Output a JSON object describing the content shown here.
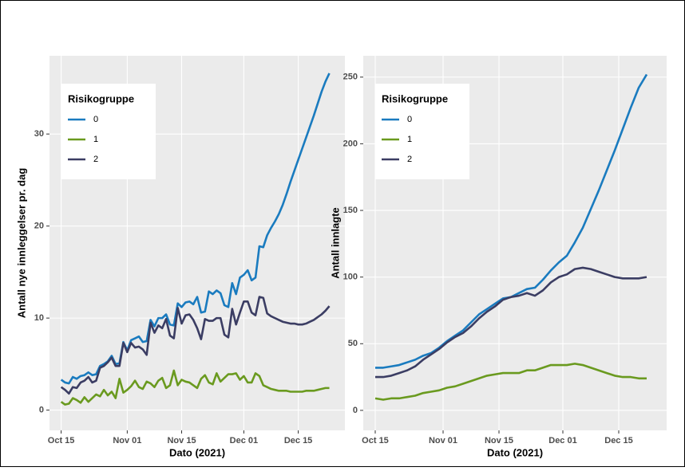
{
  "chart_data": [
    {
      "type": "line",
      "ylabel": "Antall nye innleggelser pr. dag",
      "xlabel": "Dato (2021)",
      "legend_title": "Risikogruppe",
      "legend": "top-left",
      "grid": true,
      "xlim": [
        "2021-10-12",
        "2021-12-27"
      ],
      "xticks": [
        {
          "value": "2021-10-15",
          "label": "Oct 15"
        },
        {
          "value": "2021-11-01",
          "label": "Nov 01"
        },
        {
          "value": "2021-11-15",
          "label": "Nov 15"
        },
        {
          "value": "2021-12-01",
          "label": "Dec 01"
        },
        {
          "value": "2021-12-15",
          "label": "Dec 15"
        }
      ],
      "ylim": [
        -2.2,
        38.5
      ],
      "yticks": [
        0,
        10,
        20,
        30
      ],
      "x": [
        "2021-10-15",
        "2021-10-16",
        "2021-10-17",
        "2021-10-18",
        "2021-10-19",
        "2021-10-20",
        "2021-10-21",
        "2021-10-22",
        "2021-10-23",
        "2021-10-24",
        "2021-10-25",
        "2021-10-26",
        "2021-10-27",
        "2021-10-28",
        "2021-10-29",
        "2021-10-30",
        "2021-10-31",
        "2021-11-01",
        "2021-11-02",
        "2021-11-03",
        "2021-11-04",
        "2021-11-05",
        "2021-11-06",
        "2021-11-07",
        "2021-11-08",
        "2021-11-09",
        "2021-11-10",
        "2021-11-11",
        "2021-11-12",
        "2021-11-13",
        "2021-11-14",
        "2021-11-15",
        "2021-11-16",
        "2021-11-17",
        "2021-11-18",
        "2021-11-19",
        "2021-11-20",
        "2021-11-21",
        "2021-11-22",
        "2021-11-23",
        "2021-11-24",
        "2021-11-25",
        "2021-11-26",
        "2021-11-27",
        "2021-11-28",
        "2021-11-29",
        "2021-11-30",
        "2021-12-01",
        "2021-12-02",
        "2021-12-03",
        "2021-12-04",
        "2021-12-05",
        "2021-12-06",
        "2021-12-07",
        "2021-12-08",
        "2021-12-09",
        "2021-12-10",
        "2021-12-11",
        "2021-12-12",
        "2021-12-13",
        "2021-12-14",
        "2021-12-15",
        "2021-12-16",
        "2021-12-17",
        "2021-12-18",
        "2021-12-19",
        "2021-12-20",
        "2021-12-21",
        "2021-12-22",
        "2021-12-23"
      ],
      "series": [
        {
          "name": "0",
          "color": "#1a7bbf",
          "values": [
            3.3,
            3.0,
            2.9,
            3.6,
            3.4,
            3.7,
            3.8,
            4.1,
            3.8,
            3.9,
            4.8,
            5.0,
            5.3,
            5.9,
            5.0,
            5.1,
            7.4,
            6.5,
            7.6,
            7.8,
            8.0,
            7.4,
            7.5,
            9.8,
            9.1,
            10.0,
            10.0,
            10.4,
            9.3,
            9.2,
            11.6,
            11.2,
            11.7,
            11.8,
            11.5,
            12.3,
            10.6,
            10.7,
            12.9,
            12.6,
            13.0,
            12.7,
            11.4,
            11.2,
            13.8,
            12.6,
            14.4,
            14.7,
            15.2,
            14.1,
            14.4,
            17.8,
            17.7,
            19.0,
            19.8,
            20.5,
            21.3,
            22.3,
            23.5,
            24.8,
            26.0,
            27.2,
            28.4,
            29.6,
            30.8,
            32.0,
            33.3,
            34.6,
            35.7,
            36.6
          ]
        },
        {
          "name": "1",
          "color": "#6a9a1f",
          "values": [
            0.9,
            0.6,
            0.7,
            1.3,
            1.1,
            0.8,
            1.4,
            0.9,
            1.3,
            1.7,
            1.5,
            2.2,
            1.6,
            2.0,
            1.3,
            3.4,
            1.9,
            2.2,
            2.6,
            3.2,
            2.5,
            2.3,
            3.1,
            2.9,
            2.5,
            3.2,
            3.5,
            2.4,
            2.7,
            4.3,
            2.7,
            3.3,
            3.1,
            3.0,
            2.7,
            2.4,
            3.4,
            3.8,
            3.0,
            2.8,
            4.0,
            3.1,
            3.5,
            3.9,
            3.9,
            4.0,
            3.3,
            3.7,
            3.0,
            3.0,
            4.0,
            3.7,
            2.7,
            2.5,
            2.3,
            2.2,
            2.1,
            2.1,
            2.1,
            2.0,
            2.0,
            2.0,
            2.0,
            2.1,
            2.1,
            2.1,
            2.2,
            2.3,
            2.4,
            2.4
          ]
        },
        {
          "name": "2",
          "color": "#3b3d63",
          "values": [
            2.5,
            2.2,
            1.8,
            2.5,
            2.4,
            3.0,
            3.2,
            3.6,
            3.0,
            3.2,
            4.6,
            4.8,
            5.2,
            5.7,
            4.8,
            4.8,
            7.3,
            6.3,
            7.3,
            6.8,
            6.9,
            6.6,
            6.0,
            9.5,
            8.4,
            9.2,
            8.9,
            9.9,
            8.1,
            7.8,
            11.1,
            9.4,
            10.3,
            10.4,
            9.8,
            8.9,
            7.7,
            9.9,
            9.7,
            9.7,
            10.0,
            10.0,
            8.2,
            7.9,
            11.0,
            9.3,
            10.6,
            11.8,
            11.8,
            10.6,
            10.3,
            12.3,
            12.2,
            10.5,
            10.2,
            10.0,
            9.8,
            9.6,
            9.5,
            9.4,
            9.4,
            9.3,
            9.3,
            9.4,
            9.6,
            9.8,
            10.1,
            10.4,
            10.8,
            11.3
          ]
        }
      ]
    },
    {
      "type": "line",
      "ylabel": "Antall innlagte",
      "xlabel": "Dato (2021)",
      "legend_title": "Risikogruppe",
      "legend": "top-left",
      "grid": true,
      "xlim": [
        "2021-10-12",
        "2021-12-27"
      ],
      "xticks": [
        {
          "value": "2021-10-15",
          "label": "Oct 15"
        },
        {
          "value": "2021-11-01",
          "label": "Nov 01"
        },
        {
          "value": "2021-11-15",
          "label": "Nov 15"
        },
        {
          "value": "2021-12-01",
          "label": "Dec 01"
        },
        {
          "value": "2021-12-15",
          "label": "Dec 15"
        }
      ],
      "ylim": [
        -15,
        266
      ],
      "yticks": [
        0,
        50,
        100,
        150,
        200,
        250
      ],
      "x": [
        "2021-10-15",
        "2021-10-17",
        "2021-10-19",
        "2021-10-21",
        "2021-10-23",
        "2021-10-25",
        "2021-10-27",
        "2021-10-29",
        "2021-10-31",
        "2021-11-02",
        "2021-11-04",
        "2021-11-06",
        "2021-11-08",
        "2021-11-10",
        "2021-11-12",
        "2021-11-14",
        "2021-11-16",
        "2021-11-18",
        "2021-11-20",
        "2021-11-22",
        "2021-11-24",
        "2021-11-26",
        "2021-11-28",
        "2021-11-30",
        "2021-12-02",
        "2021-12-04",
        "2021-12-06",
        "2021-12-08",
        "2021-12-10",
        "2021-12-12",
        "2021-12-14",
        "2021-12-16",
        "2021-12-18",
        "2021-12-20",
        "2021-12-22"
      ],
      "series": [
        {
          "name": "0",
          "color": "#1a7bbf",
          "values": [
            32,
            32,
            33,
            34,
            36,
            38,
            41,
            43,
            47,
            52,
            56,
            60,
            66,
            72,
            76,
            80,
            84,
            85,
            88,
            91,
            92,
            98,
            105,
            111,
            116,
            126,
            137,
            151,
            165,
            180,
            195,
            211,
            227,
            242,
            252
          ]
        },
        {
          "name": "1",
          "color": "#6a9a1f",
          "values": [
            9,
            8,
            9,
            9,
            10,
            11,
            13,
            14,
            15,
            17,
            18,
            20,
            22,
            24,
            26,
            27,
            28,
            28,
            28,
            30,
            30,
            32,
            34,
            34,
            34,
            35,
            34,
            32,
            30,
            28,
            26,
            25,
            25,
            24,
            24
          ]
        },
        {
          "name": "2",
          "color": "#3b3d63",
          "values": [
            25,
            25,
            26,
            28,
            30,
            33,
            38,
            42,
            46,
            51,
            55,
            58,
            63,
            69,
            74,
            78,
            83,
            85,
            86,
            88,
            86,
            90,
            96,
            100,
            102,
            106,
            107,
            106,
            104,
            102,
            100,
            99,
            99,
            99,
            100
          ]
        }
      ]
    }
  ]
}
